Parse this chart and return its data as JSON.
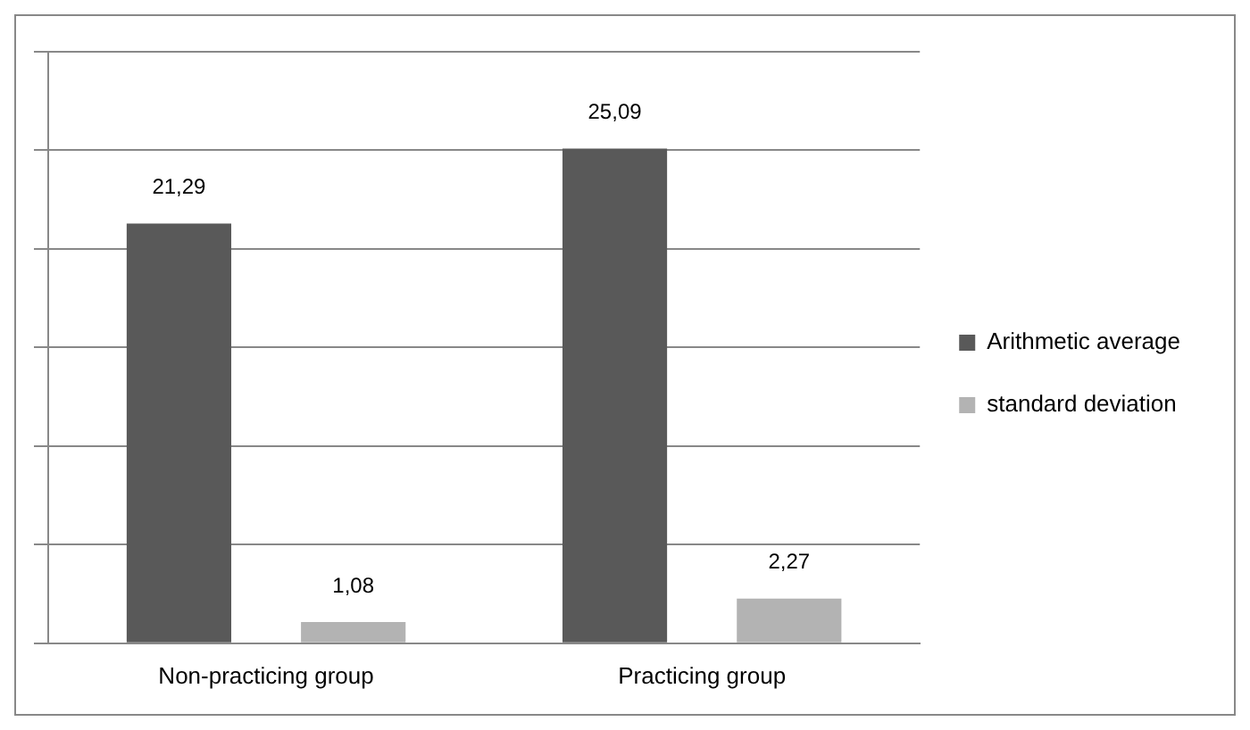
{
  "chart_data": {
    "type": "bar",
    "categories": [
      "Non-practicing group",
      "Practicing group"
    ],
    "series": [
      {
        "name": "Arithmetic average",
        "color": "#595959",
        "values": [
          21.29,
          25.09
        ],
        "value_labels": [
          "21,29",
          "25,09"
        ]
      },
      {
        "name": "standard deviation",
        "color": "#b3b3b3",
        "values": [
          1.08,
          2.27
        ],
        "value_labels": [
          "1,08",
          "2,27"
        ]
      }
    ],
    "ylim": [
      0,
      30
    ],
    "yticks": [
      {
        "value": 0,
        "label": null
      },
      {
        "value": 5,
        "label": null
      },
      {
        "value": 10,
        "label": null
      },
      {
        "value": 15,
        "label": null
      },
      {
        "value": 20,
        "label": null
      },
      {
        "value": 25,
        "label": null
      },
      {
        "value": 30,
        "label": null
      }
    ],
    "grid": "y",
    "legend": "right",
    "tick_labels": "x"
  }
}
